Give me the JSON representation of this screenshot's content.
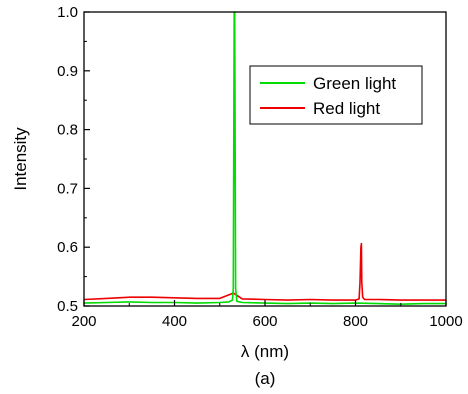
{
  "chart_data": {
    "type": "line",
    "title": "",
    "caption": "(a)",
    "xlabel": "λ (nm)",
    "ylabel": "Intensity",
    "xlim": [
      200,
      1000
    ],
    "ylim": [
      0.5,
      1.0
    ],
    "xticks": [
      200,
      400,
      600,
      800,
      1000
    ],
    "xtick_labels": [
      "200",
      "400",
      "600",
      "800",
      "1000"
    ],
    "yticks": [
      0.5,
      0.6,
      0.7,
      0.8,
      0.9,
      1.0
    ],
    "ytick_labels": [
      "0.5",
      "0.6",
      "0.7",
      "0.8",
      "0.9",
      "1.0"
    ],
    "grid": false,
    "legend_position": "top-right",
    "series": [
      {
        "name": "Green light",
        "color": "#00dd00",
        "x": [
          200,
          250,
          300,
          350,
          400,
          450,
          500,
          520,
          528,
          530,
          531,
          532,
          533,
          534,
          535,
          538,
          550,
          600,
          650,
          700,
          750,
          800,
          850,
          900,
          950,
          1000
        ],
        "y": [
          0.505,
          0.506,
          0.507,
          0.506,
          0.506,
          0.505,
          0.506,
          0.507,
          0.51,
          0.53,
          0.8,
          1.0,
          1.0,
          0.8,
          0.53,
          0.508,
          0.506,
          0.505,
          0.504,
          0.505,
          0.504,
          0.505,
          0.504,
          0.503,
          0.504,
          0.504
        ]
      },
      {
        "name": "Red light",
        "color": "#ee0000",
        "x": [
          200,
          250,
          300,
          350,
          400,
          450,
          500,
          530,
          550,
          600,
          650,
          700,
          750,
          800,
          808,
          810,
          812,
          813,
          814,
          816,
          820,
          850,
          900,
          950,
          1000
        ],
        "y": [
          0.511,
          0.513,
          0.515,
          0.515,
          0.514,
          0.513,
          0.513,
          0.522,
          0.512,
          0.511,
          0.51,
          0.511,
          0.51,
          0.51,
          0.512,
          0.54,
          0.6,
          0.606,
          0.54,
          0.515,
          0.511,
          0.511,
          0.51,
          0.51,
          0.51
        ]
      }
    ]
  }
}
